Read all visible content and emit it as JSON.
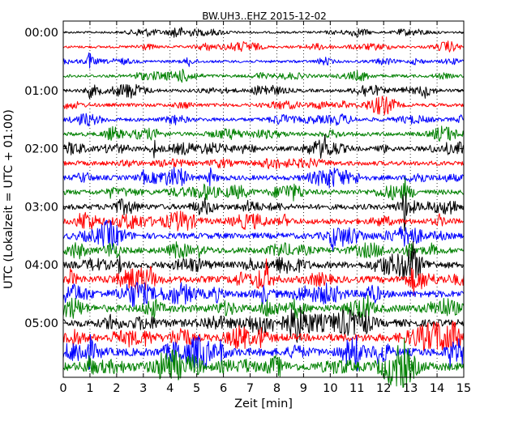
{
  "chart_data": {
    "type": "line",
    "title": "BW.UH3..EHZ 2015-12-02",
    "xlabel": "Zeit  [min]",
    "ylabel": "UTC (Lokalzeit = UTC + 01:00)",
    "xlim": [
      0,
      15
    ],
    "x_ticks": [
      0,
      1,
      2,
      3,
      4,
      5,
      6,
      7,
      8,
      9,
      10,
      11,
      12,
      13,
      14,
      15
    ],
    "x_tick_labels": [
      "0",
      "1",
      "2",
      "3",
      "4",
      "5",
      "6",
      "7",
      "8",
      "9",
      "10",
      "11",
      "12",
      "13",
      "14",
      "15"
    ],
    "y_tick_labels": [
      {
        "trace": 0,
        "label": "00:00"
      },
      {
        "trace": 4,
        "label": "01:00"
      },
      {
        "trace": 8,
        "label": "02:00"
      },
      {
        "trace": 12,
        "label": "03:00"
      },
      {
        "trace": 16,
        "label": "04:00"
      },
      {
        "trace": 20,
        "label": "05:00"
      }
    ],
    "grid": "vertical dotted",
    "trace_minutes": 15,
    "trace_count": 24,
    "colors": [
      "#000000",
      "#ff0000",
      "#0000ff",
      "#008000"
    ],
    "traces": [
      {
        "start": "00:00",
        "events": [
          [
            4.2,
            0.8
          ]
        ]
      },
      {
        "start": "00:15",
        "events": []
      },
      {
        "start": "00:30",
        "events": [
          [
            1.0,
            1.0
          ],
          [
            4.7,
            0.6
          ]
        ]
      },
      {
        "start": "00:45",
        "events": []
      },
      {
        "start": "01:00",
        "events": [
          [
            1.0,
            0.5
          ],
          [
            13.5,
            0.5
          ]
        ]
      },
      {
        "start": "01:15",
        "events": [
          [
            10.5,
            0.4
          ]
        ]
      },
      {
        "start": "01:30",
        "events": [
          [
            14.9,
            0.4
          ]
        ]
      },
      {
        "start": "01:45",
        "events": []
      },
      {
        "start": "02:00",
        "events": [
          [
            3.4,
            0.8
          ],
          [
            9.8,
            0.6
          ],
          [
            12.0,
            0.5
          ],
          [
            14.4,
            0.5
          ]
        ]
      },
      {
        "start": "02:15",
        "events": []
      },
      {
        "start": "02:30",
        "events": [
          [
            3.0,
            0.5
          ],
          [
            5.5,
            0.8
          ],
          [
            11.0,
            0.4
          ]
        ]
      },
      {
        "start": "02:45",
        "events": [
          [
            1.8,
            0.5
          ],
          [
            12.8,
            1.0
          ]
        ]
      },
      {
        "start": "03:00",
        "events": [
          [
            7.0,
            0.5
          ],
          [
            12.8,
            2.6
          ]
        ]
      },
      {
        "start": "03:15",
        "events": [
          [
            8.3,
            0.5
          ],
          [
            14.1,
            0.6
          ]
        ]
      },
      {
        "start": "03:30",
        "events": [
          [
            10.1,
            1.0
          ],
          [
            12.9,
            0.8
          ]
        ]
      },
      {
        "start": "03:45",
        "events": [
          [
            5.1,
            0.5
          ],
          [
            13.0,
            1.2
          ],
          [
            13.8,
            0.6
          ]
        ]
      },
      {
        "start": "04:00",
        "events": [
          [
            2.1,
            0.6
          ],
          [
            12.8,
            1.6
          ],
          [
            13.1,
            1.6
          ]
        ]
      },
      {
        "start": "04:15",
        "events": [
          [
            0.3,
            1.0
          ],
          [
            3.3,
            1.0
          ],
          [
            7.6,
            1.4
          ],
          [
            13.1,
            1.0
          ]
        ]
      },
      {
        "start": "04:30",
        "events": [
          [
            5.7,
            1.0
          ],
          [
            7.5,
            1.2
          ]
        ]
      },
      {
        "start": "04:45",
        "events": [
          [
            7.6,
            1.0
          ],
          [
            8.7,
            1.2
          ],
          [
            11.4,
            0.8
          ]
        ]
      },
      {
        "start": "05:00",
        "events": [
          [
            1.8,
            1.2
          ],
          [
            8.7,
            2.0
          ],
          [
            11.3,
            1.4
          ]
        ]
      },
      {
        "start": "05:15",
        "events": [
          [
            0.4,
            1.2
          ],
          [
            2.5,
            1.0
          ],
          [
            7.4,
            1.0
          ]
        ]
      },
      {
        "start": "05:30",
        "events": [
          [
            1.0,
            1.0
          ],
          [
            5.9,
            1.0
          ],
          [
            8.7,
            1.2
          ],
          [
            11.0,
            1.2
          ],
          [
            14.5,
            1.0
          ]
        ]
      },
      {
        "start": "05:45",
        "events": [
          [
            1.0,
            1.2
          ],
          [
            12.8,
            1.0
          ]
        ]
      }
    ]
  }
}
